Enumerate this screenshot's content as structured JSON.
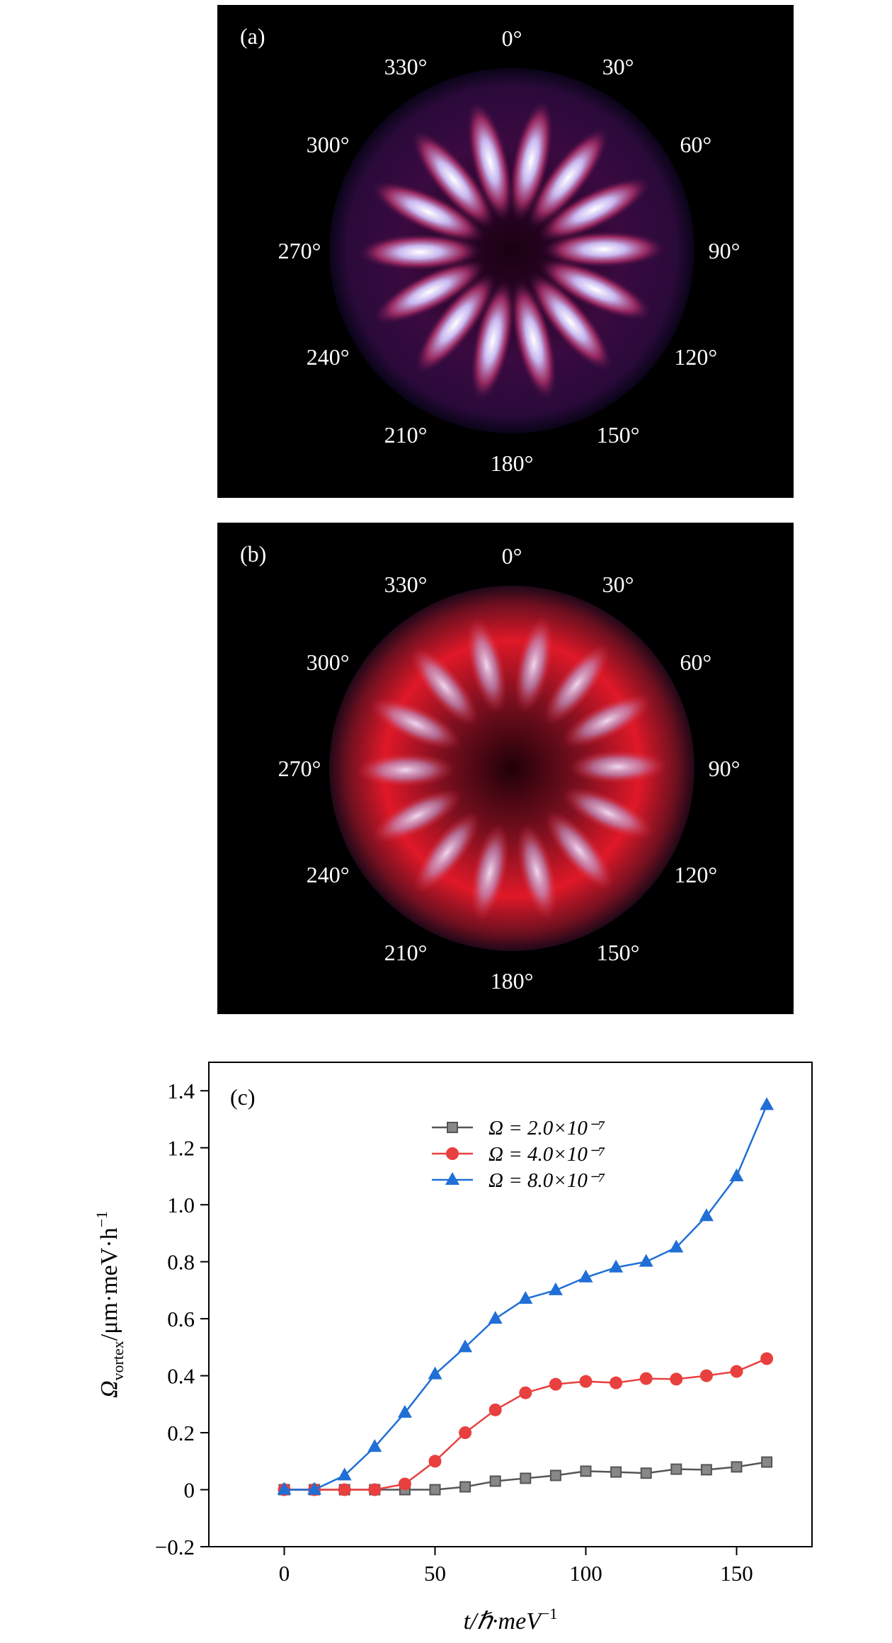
{
  "panels": [
    {
      "label": "(a)",
      "angles": [
        "0°",
        "30°",
        "60°",
        "90°",
        "120°",
        "150°",
        "180°",
        "210°",
        "240°",
        "270°",
        "300°",
        "330°"
      ]
    },
    {
      "label": "(b)",
      "angles": [
        "0°",
        "30°",
        "60°",
        "90°",
        "120°",
        "150°",
        "180°",
        "210°",
        "240°",
        "270°",
        "300°",
        "330°"
      ]
    }
  ],
  "chart_data": {
    "type": "line",
    "panel_label": "(c)",
    "xlabel": {
      "main": "t/ℏ·meV",
      "sup": "−1"
    },
    "ylabel": {
      "symbol": "Ω",
      "sub": "vortex",
      "main": "/μm·meV·h",
      "sup": "−1"
    },
    "x": [
      0,
      10,
      20,
      30,
      40,
      50,
      60,
      70,
      80,
      90,
      100,
      110,
      120,
      130,
      140,
      150,
      160
    ],
    "series": [
      {
        "name": "Ω = 2.0×10⁻⁷",
        "color": "#555555",
        "marker": "square",
        "values": [
          0,
          0,
          0,
          0,
          0,
          0,
          0.01,
          0.03,
          0.04,
          0.05,
          0.065,
          0.062,
          0.058,
          0.072,
          0.07,
          0.08,
          0.097
        ]
      },
      {
        "name": "Ω = 4.0×10⁻⁷",
        "color": "#e8403f",
        "marker": "circle",
        "values": [
          0,
          0,
          0,
          0,
          0.02,
          0.1,
          0.2,
          0.28,
          0.34,
          0.37,
          0.38,
          0.375,
          0.39,
          0.388,
          0.4,
          0.415,
          0.46
        ]
      },
      {
        "name": "Ω = 8.0×10⁻⁷",
        "color": "#1f6fd6",
        "marker": "triangle",
        "values": [
          0,
          0,
          0.05,
          0.15,
          0.27,
          0.405,
          0.5,
          0.6,
          0.67,
          0.7,
          0.745,
          0.78,
          0.8,
          0.85,
          0.96,
          1.1,
          1.35
        ]
      }
    ],
    "xlim": [
      -25,
      175
    ],
    "xticks": [
      0,
      50,
      100,
      150
    ],
    "ylim": [
      -0.2,
      1.5
    ],
    "yticks": [
      {
        "value": -0.2,
        "label": "−0.2"
      },
      0,
      0.2,
      0.4,
      0.6,
      0.8,
      {
        "value": 1,
        "label": "1.0"
      },
      1.2,
      1.4
    ],
    "legend": "upper center"
  }
}
